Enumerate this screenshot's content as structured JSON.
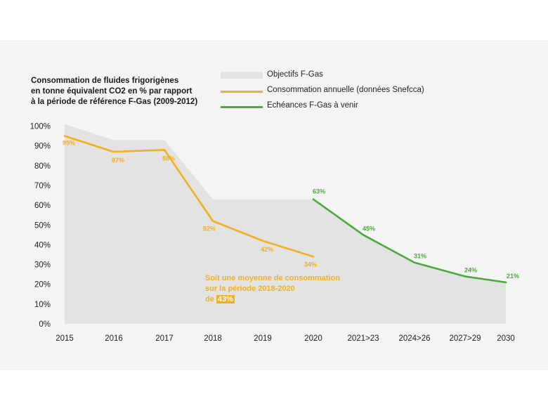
{
  "title_lines": [
    "Consommation de fluides frigorigènes",
    "en tonne équivalent CO2 en % par rapport",
    "à la période de référence F-Gas (2009-2012)"
  ],
  "legend": [
    {
      "label": "Objectifs F-Gas",
      "color": "#e3e3e3",
      "kind": "area"
    },
    {
      "label": "Consommation annuelle (données Snefcca)",
      "color": "#f2b01e",
      "kind": "line"
    },
    {
      "label": "Echéances F-Gas à venir",
      "color": "#4caa3c",
      "kind": "line"
    }
  ],
  "annotation": {
    "line1": "Soit une moyenne de consommation",
    "line2": "sur la période 2018-2020",
    "line3_prefix": "de",
    "highlight": "43%"
  },
  "chart_data": {
    "type": "line",
    "categories": [
      "2015",
      "2016",
      "2017",
      "2018",
      "2019",
      "2020",
      "2021>23",
      "2024>26",
      "2027>29",
      "2030"
    ],
    "ylim": [
      0,
      100
    ],
    "yticks": [
      "0%",
      "10%",
      "20%",
      "30%",
      "40%",
      "50%",
      "60%",
      "70%",
      "80%",
      "90%",
      "100%"
    ],
    "target_area": {
      "name": "Objectifs F-Gas",
      "color": "#e3e3e3",
      "steps": [
        {
          "from": 0,
          "to": 1,
          "start": 101,
          "end": 93
        },
        {
          "from": 1,
          "to": 2,
          "start": 93,
          "end": 93
        },
        {
          "from": 2,
          "to": 3,
          "start": 93,
          "end": 63
        },
        {
          "from": 3,
          "to": 5,
          "start": 63,
          "end": 63
        },
        {
          "from": 5,
          "to": 6,
          "start": 63,
          "end": 45
        },
        {
          "from": 6,
          "to": 7,
          "start": 45,
          "end": 31
        },
        {
          "from": 7,
          "to": 8,
          "start": 31,
          "end": 24
        },
        {
          "from": 8,
          "to": 9,
          "start": 24,
          "end": 21
        }
      ]
    },
    "series": [
      {
        "name": "Consommation annuelle (données Snefcca)",
        "color": "#f2b01e",
        "points": [
          [
            0,
            95
          ],
          [
            1,
            87
          ],
          [
            2,
            88
          ],
          [
            3,
            52
          ],
          [
            4,
            42
          ],
          [
            5,
            34
          ]
        ],
        "labels": [
          "95%",
          "87%",
          "88%",
          "52%",
          "42%",
          "34%"
        ]
      },
      {
        "name": "Echéances F-Gas à venir",
        "color": "#4caa3c",
        "points": [
          [
            5,
            63
          ],
          [
            6,
            45
          ],
          [
            7,
            31
          ],
          [
            8,
            24
          ],
          [
            9,
            21
          ]
        ],
        "labels": [
          "63%",
          "45%",
          "31%",
          "24%",
          "21%"
        ]
      }
    ]
  }
}
